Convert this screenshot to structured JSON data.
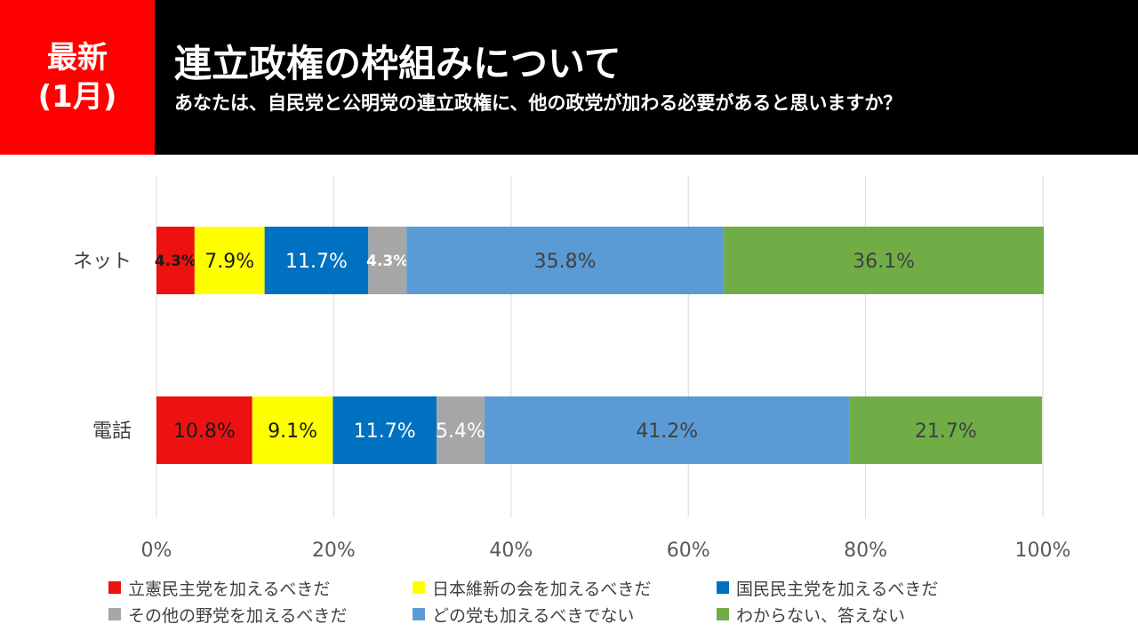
{
  "header": {
    "badge_line1": "最新",
    "badge_line2": "(1月)",
    "title": "連立政権の枠組みについて",
    "subtitle": "あなたは、自民党と公明党の連立政権に、他の政党が加わる必要があると思いますか？"
  },
  "chart_data": {
    "type": "bar",
    "orientation": "horizontal-stacked-100",
    "categories": [
      "ネット",
      "電話"
    ],
    "xlim": [
      0,
      100
    ],
    "xticks": [
      "0%",
      "20%",
      "40%",
      "60%",
      "80%",
      "100%"
    ],
    "grid": true,
    "legend_position": "bottom",
    "series": [
      {
        "name": "立憲民主党を加えるべきだ",
        "color": "#ee1111",
        "label_color": "#1a1a1a",
        "values": [
          4.3,
          10.8
        ],
        "labels": [
          "4.3%",
          "10.8%"
        ]
      },
      {
        "name": "日本維新の会を加えるべきだ",
        "color": "#ffff00",
        "label_color": "#1a1a1a",
        "values": [
          7.9,
          9.1
        ],
        "labels": [
          "7.9%",
          "9.1%"
        ]
      },
      {
        "name": "国民民主党を加えるべきだ",
        "color": "#0070c0",
        "label_color": "#ffffff",
        "values": [
          11.7,
          11.7
        ],
        "labels": [
          "11.7%",
          "11.7%"
        ]
      },
      {
        "name": "その他の野党を加えるべきだ",
        "color": "#a6a6a6",
        "label_color": "#ffffff",
        "values": [
          4.3,
          5.4
        ],
        "labels": [
          "4.3%",
          "5.4%"
        ]
      },
      {
        "name": "どの党も加えるべきでない",
        "color": "#5b9bd5",
        "label_color": "#404040",
        "values": [
          35.8,
          41.2
        ],
        "labels": [
          "35.8%",
          "41.2%"
        ]
      },
      {
        "name": "わからない、答えない",
        "color": "#70ad47",
        "label_color": "#404040",
        "values": [
          36.1,
          21.7
        ],
        "labels": [
          "36.1%",
          "21.7%"
        ]
      }
    ]
  }
}
